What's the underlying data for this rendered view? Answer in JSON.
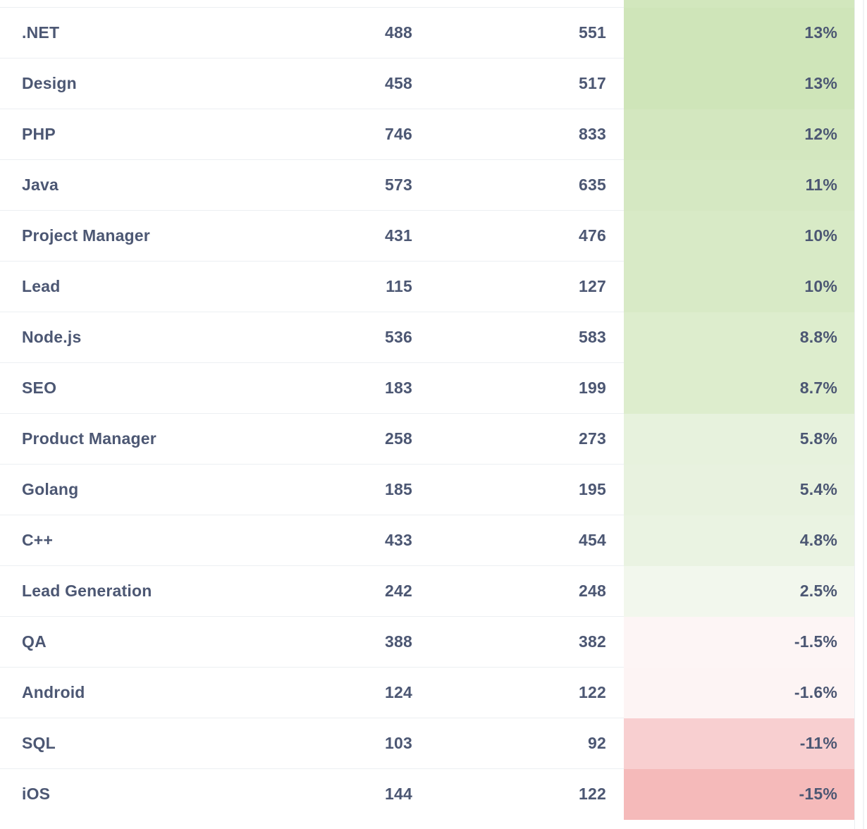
{
  "colors": {
    "text": "#4c5773",
    "row_divider": "#eceff2",
    "top_strip_tint": "#d2e7bd"
  },
  "table": {
    "rows": [
      {
        "name": ".NET",
        "a": "488",
        "b": "551",
        "change": "13%",
        "change_value": 13,
        "bg": "#cfe5b9"
      },
      {
        "name": "Design",
        "a": "458",
        "b": "517",
        "change": "13%",
        "change_value": 13,
        "bg": "#cfe5b9"
      },
      {
        "name": "PHP",
        "a": "746",
        "b": "833",
        "change": "12%",
        "change_value": 12,
        "bg": "#d3e7bf"
      },
      {
        "name": "Java",
        "a": "573",
        "b": "635",
        "change": "11%",
        "change_value": 11,
        "bg": "#d5e8c2"
      },
      {
        "name": "Project Manager",
        "a": "431",
        "b": "476",
        "change": "10%",
        "change_value": 10,
        "bg": "#d8eac6"
      },
      {
        "name": "Lead",
        "a": "115",
        "b": "127",
        "change": "10%",
        "change_value": 10,
        "bg": "#d8eac6"
      },
      {
        "name": "Node.js",
        "a": "536",
        "b": "583",
        "change": "8.8%",
        "change_value": 8.8,
        "bg": "#ddedcd"
      },
      {
        "name": "SEO",
        "a": "183",
        "b": "199",
        "change": "8.7%",
        "change_value": 8.7,
        "bg": "#ddedcd"
      },
      {
        "name": "Product Manager",
        "a": "258",
        "b": "273",
        "change": "5.8%",
        "change_value": 5.8,
        "bg": "#e7f2dd"
      },
      {
        "name": "Golang",
        "a": "185",
        "b": "195",
        "change": "5.4%",
        "change_value": 5.4,
        "bg": "#e8f2df"
      },
      {
        "name": "C++",
        "a": "433",
        "b": "454",
        "change": "4.8%",
        "change_value": 4.8,
        "bg": "#eaf3e2"
      },
      {
        "name": "Lead Generation",
        "a": "242",
        "b": "248",
        "change": "2.5%",
        "change_value": 2.5,
        "bg": "#f2f7ed"
      },
      {
        "name": "QA",
        "a": "388",
        "b": "382",
        "change": "-1.5%",
        "change_value": -1.5,
        "bg": "#fdf5f5"
      },
      {
        "name": "Android",
        "a": "124",
        "b": "122",
        "change": "-1.6%",
        "change_value": -1.6,
        "bg": "#fdf4f4"
      },
      {
        "name": "SQL",
        "a": "103",
        "b": "92",
        "change": "-11%",
        "change_value": -11,
        "bg": "#f8cfd0"
      },
      {
        "name": "iOS",
        "a": "144",
        "b": "122",
        "change": "-15%",
        "change_value": -15,
        "bg": "#f5baba"
      }
    ]
  }
}
